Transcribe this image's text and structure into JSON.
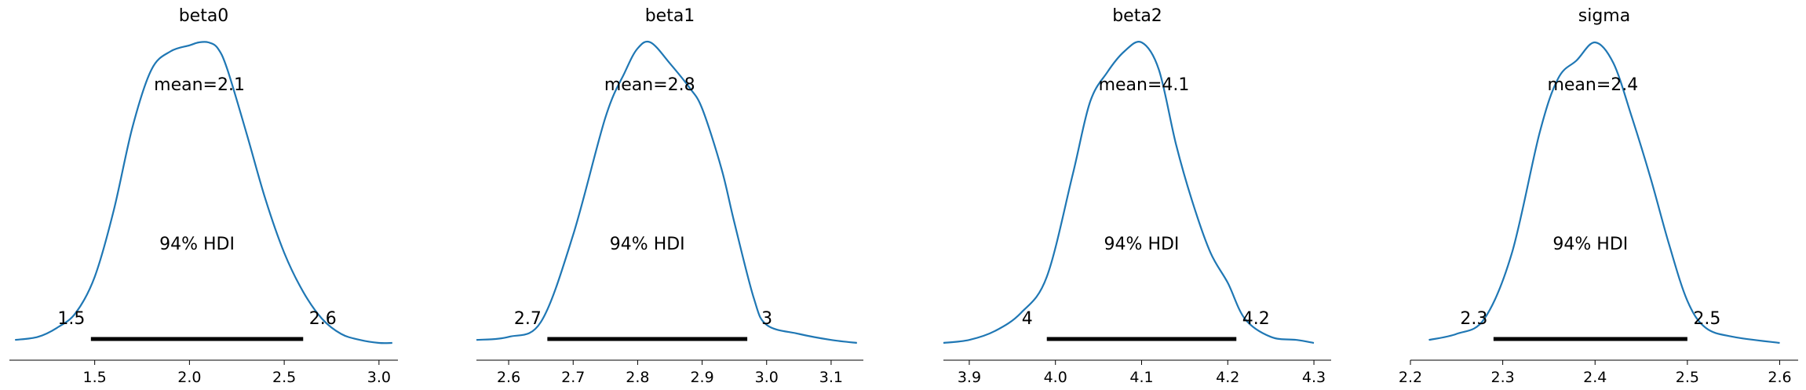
{
  "chart_data": [
    {
      "type": "area",
      "title": "beta0",
      "xlim": [
        1.05,
        3.1
      ],
      "xticks": [
        1.5,
        2.0,
        2.5,
        3.0
      ],
      "xtick_labels": [
        "1.5",
        "2.0",
        "2.5",
        "3.0"
      ],
      "mean_label": "mean=2.1",
      "hdi_label": "94% HDI",
      "hdi": [
        1.48,
        2.6
      ],
      "hdi_labels": [
        "1.5",
        "2.6"
      ],
      "x": [
        1.08,
        1.2,
        1.3,
        1.4,
        1.5,
        1.6,
        1.7,
        1.8,
        1.9,
        2.0,
        2.05,
        2.1,
        2.15,
        2.2,
        2.3,
        2.4,
        2.5,
        2.6,
        2.7,
        2.8,
        2.9,
        3.0,
        3.07
      ],
      "y": [
        0.01,
        0.02,
        0.05,
        0.1,
        0.22,
        0.44,
        0.72,
        0.91,
        0.97,
        0.99,
        1.0,
        1.0,
        0.98,
        0.91,
        0.7,
        0.48,
        0.3,
        0.17,
        0.08,
        0.03,
        0.01,
        0.0,
        0.0
      ]
    },
    {
      "type": "area",
      "title": "beta1",
      "xlim": [
        2.55,
        3.15
      ],
      "xticks": [
        2.6,
        2.7,
        2.8,
        2.9,
        3.0,
        3.1
      ],
      "xtick_labels": [
        "2.6",
        "2.7",
        "2.8",
        "2.9",
        "3.0",
        "3.1"
      ],
      "mean_label": "mean=2.8",
      "hdi_label": "94% HDI",
      "hdi": [
        2.66,
        2.97
      ],
      "hdi_labels": [
        "2.7",
        "3"
      ],
      "x": [
        2.55,
        2.6,
        2.65,
        2.7,
        2.75,
        2.78,
        2.8,
        2.82,
        2.85,
        2.88,
        2.9,
        2.93,
        2.95,
        2.98,
        3.0,
        3.05,
        3.1,
        3.14
      ],
      "y": [
        0.01,
        0.02,
        0.07,
        0.36,
        0.75,
        0.9,
        0.98,
        1.0,
        0.93,
        0.85,
        0.78,
        0.58,
        0.4,
        0.15,
        0.06,
        0.03,
        0.01,
        0.0
      ]
    },
    {
      "type": "area",
      "title": "beta2",
      "xlim": [
        3.87,
        4.32
      ],
      "xticks": [
        3.9,
        4.0,
        4.1,
        4.2,
        4.3
      ],
      "xtick_labels": [
        "3.9",
        "4.0",
        "4.1",
        "4.2",
        "4.3"
      ],
      "mean_label": "mean=4.1",
      "hdi_label": "94% HDI",
      "hdi": [
        3.99,
        4.21
      ],
      "hdi_labels": [
        "4",
        "4.2"
      ],
      "x": [
        3.87,
        3.9,
        3.93,
        3.96,
        3.99,
        4.02,
        4.04,
        4.06,
        4.08,
        4.1,
        4.12,
        4.14,
        4.16,
        4.18,
        4.2,
        4.22,
        4.25,
        4.28,
        4.3
      ],
      "y": [
        0.0,
        0.01,
        0.04,
        0.1,
        0.22,
        0.56,
        0.8,
        0.9,
        0.97,
        1.0,
        0.91,
        0.66,
        0.46,
        0.3,
        0.2,
        0.08,
        0.02,
        0.01,
        0.0
      ]
    },
    {
      "type": "area",
      "title": "sigma",
      "xlim": [
        2.2,
        2.62
      ],
      "xticks": [
        2.2,
        2.3,
        2.4,
        2.5,
        2.6
      ],
      "xtick_labels": [
        "2.2",
        "2.3",
        "2.4",
        "2.5",
        "2.6"
      ],
      "mean_label": "mean=2.4",
      "hdi_label": "94% HDI",
      "hdi": [
        2.29,
        2.5
      ],
      "hdi_labels": [
        "2.3",
        "2.5"
      ],
      "x": [
        2.22,
        2.25,
        2.28,
        2.31,
        2.34,
        2.36,
        2.38,
        2.4,
        2.42,
        2.44,
        2.46,
        2.48,
        2.5,
        2.52,
        2.55,
        2.6
      ],
      "y": [
        0.01,
        0.03,
        0.08,
        0.3,
        0.7,
        0.88,
        0.94,
        1.0,
        0.93,
        0.75,
        0.55,
        0.33,
        0.14,
        0.05,
        0.02,
        0.0
      ]
    }
  ]
}
